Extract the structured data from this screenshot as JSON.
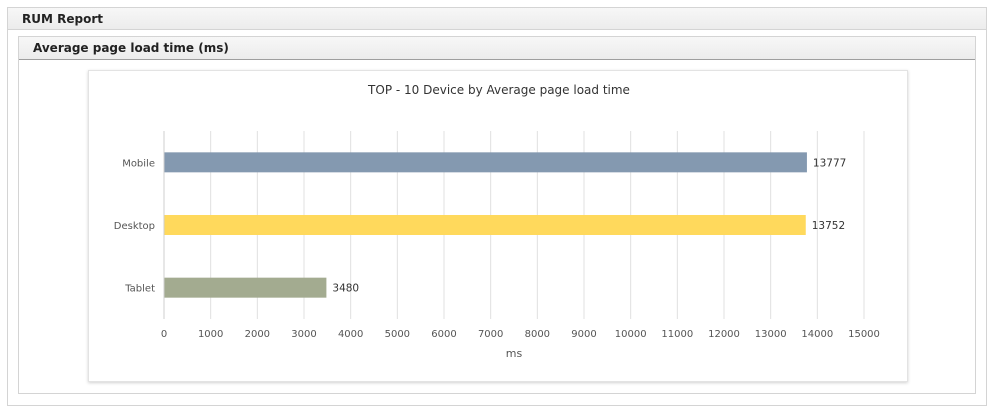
{
  "report": {
    "title": "RUM Report"
  },
  "panel": {
    "title": "Average page load time (ms)"
  },
  "chart_data": {
    "type": "bar",
    "orientation": "horizontal",
    "title": "TOP - 10 Device by Average page load time",
    "xlabel": "ms",
    "ylabel": "",
    "categories": [
      "Mobile",
      "Desktop",
      "Tablet"
    ],
    "values": [
      13777,
      13752,
      3480
    ],
    "colors": [
      "#8499b0",
      "#ffd95c",
      "#a3ab90"
    ],
    "xlim": [
      0,
      15000
    ],
    "ticks": [
      0,
      1000,
      2000,
      3000,
      4000,
      5000,
      6000,
      7000,
      8000,
      9000,
      10000,
      11000,
      12000,
      13000,
      14000,
      15000
    ],
    "grid": true,
    "data_labels": true
  }
}
